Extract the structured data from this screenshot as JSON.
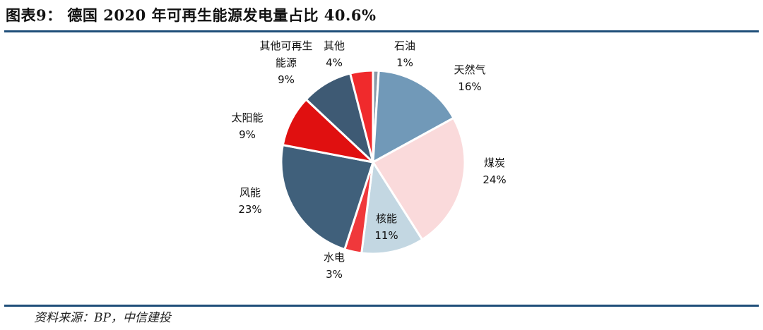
{
  "header": {
    "figure_title": "图表9： 德国 2020 年可再生能源发电量占比 40.6%"
  },
  "footer": {
    "source": "资料来源：BP，中信建投"
  },
  "chart_data": {
    "type": "pie",
    "title": "",
    "start_angle_deg": 0,
    "direction": "clockwise",
    "slices": [
      {
        "label": "石油",
        "value": 1,
        "label_text": "1%",
        "color": "#8a9aa8"
      },
      {
        "label": "天然气",
        "value": 16,
        "label_text": "16%",
        "color": "#7199b8"
      },
      {
        "label": "煤炭",
        "value": 24,
        "label_text": "24%",
        "color": "#fadadb"
      },
      {
        "label": "核能",
        "value": 11,
        "label_text": "11%",
        "color": "#c3d7e2"
      },
      {
        "label": "水电",
        "value": 3,
        "label_text": "3%",
        "color": "#f0383b"
      },
      {
        "label": "风能",
        "value": 23,
        "label_text": "23%",
        "color": "#40607b"
      },
      {
        "label": "太阳能",
        "value": 9,
        "label_text": "9%",
        "color": "#e01010"
      },
      {
        "label": "其他可再生能源",
        "value": 9,
        "label_text": "9%",
        "color": "#3e5a74"
      },
      {
        "label": "其他",
        "value": 4,
        "label_text": "4%",
        "color": "#f02a2c"
      }
    ]
  }
}
